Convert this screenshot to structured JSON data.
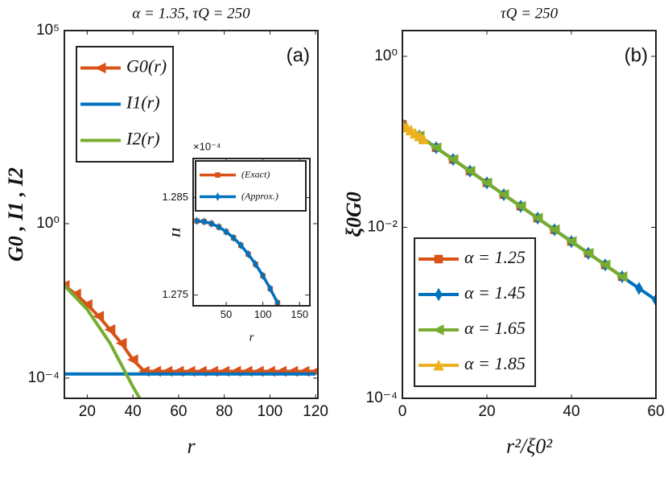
{
  "chart_data": [
    {
      "type": "line",
      "title": "α = 1.35, τQ = 250",
      "annotation": "(a)",
      "xlabel": "r",
      "ylabel": "G0 , I1 , I2",
      "xlim": [
        10,
        121
      ],
      "xticks": [
        20,
        40,
        60,
        80,
        100,
        120
      ],
      "ylim": [
        3e-05,
        100000
      ],
      "yscale": "log",
      "yticks": [
        {
          "value": 0.0001,
          "label": "10⁻⁴"
        },
        {
          "value": 1,
          "label": "10⁰"
        },
        {
          "value": 100000,
          "label": "10⁵"
        }
      ],
      "legend": "upper left",
      "series": [
        {
          "name": "G0(r)",
          "color": "#d95319",
          "marker": "triangle-left",
          "x": [
            10,
            15,
            20,
            25,
            30,
            35,
            40,
            45,
            50,
            55,
            60,
            65,
            70,
            75,
            80,
            85,
            90,
            95,
            100,
            105,
            110,
            115,
            120
          ],
          "values": [
            0.025,
            0.015,
            0.008,
            0.004,
            0.0018,
            0.0008,
            0.0003,
            0.00015,
            0.00015,
            0.00015,
            0.00015,
            0.00015,
            0.00015,
            0.00015,
            0.00015,
            0.00015,
            0.00015,
            0.00015,
            0.00015,
            0.00015,
            0.00015,
            0.00015,
            0.00015
          ]
        },
        {
          "name": "I1(r)",
          "color": "#0072bd",
          "marker": "none",
          "x": [
            10,
            120
          ],
          "values": [
            0.000128,
            0.000128
          ]
        },
        {
          "name": "I2(r)",
          "color": "#77ac30",
          "marker": "none",
          "x": [
            10,
            20,
            30,
            40,
            43
          ],
          "values": [
            0.025,
            0.006,
            0.0008,
            6e-05,
            3e-05
          ]
        }
      ]
    },
    {
      "type": "line",
      "xlabel": "r",
      "ylabel": "I1",
      "multiplier": "×10⁻⁴",
      "xlim": [
        5,
        164
      ],
      "xticks": [
        50,
        100,
        150
      ],
      "ylim": [
        1.2739,
        1.289
      ],
      "yticks": [
        1.275,
        1.285
      ],
      "legend": "upper left",
      "series": [
        {
          "name": "(Exact)",
          "color": "#d95319",
          "marker": "square",
          "x": [
            10,
            20,
            30,
            40,
            50,
            60,
            70,
            80,
            90,
            100,
            110,
            120
          ],
          "values": [
            1.2826,
            1.28253,
            1.28232,
            1.28198,
            1.28149,
            1.28087,
            1.2801,
            1.2792,
            1.27816,
            1.27698,
            1.27566,
            1.2742
          ]
        },
        {
          "name": "(Approx.)",
          "color": "#0072bd",
          "marker": "diamond",
          "x": [
            10,
            20,
            30,
            40,
            50,
            60,
            70,
            80,
            90,
            100,
            110,
            120
          ],
          "values": [
            1.2826,
            1.28253,
            1.28232,
            1.28198,
            1.28149,
            1.28087,
            1.2801,
            1.2792,
            1.27816,
            1.27698,
            1.27566,
            1.2742
          ]
        }
      ]
    },
    {
      "type": "line",
      "title": "τQ = 250",
      "annotation": "(b)",
      "xlabel": "r²/ξ0²",
      "ylabel": "ξ0G0",
      "xlim": [
        0,
        60
      ],
      "xticks": [
        0,
        20,
        40,
        60
      ],
      "ylim": [
        0.0001,
        2
      ],
      "yscale": "log",
      "yticks": [
        {
          "value": 0.0001,
          "label": "10⁻⁴"
        },
        {
          "value": 0.01,
          "label": "10⁻²"
        },
        {
          "value": 1,
          "label": "10⁰"
        }
      ],
      "legend": "lower left",
      "series": [
        {
          "name": "α = 1.25",
          "color": "#d95319",
          "marker": "square",
          "x": [
            0,
            4,
            8,
            12,
            16,
            20,
            24,
            28,
            32,
            36,
            40,
            44,
            48,
            52
          ],
          "values": [
            0.16,
            0.117,
            0.0853,
            0.0622,
            0.0454,
            0.0331,
            0.0241,
            0.0176,
            0.0128,
            0.00935,
            0.00682,
            0.00497,
            0.00363,
            0.00264
          ]
        },
        {
          "name": "α = 1.45",
          "color": "#0072bd",
          "marker": "diamond",
          "x": [
            0,
            4,
            8,
            12,
            16,
            20,
            24,
            28,
            32,
            36,
            40,
            44,
            48,
            52,
            56,
            60
          ],
          "values": [
            0.16,
            0.117,
            0.0853,
            0.0622,
            0.0454,
            0.0331,
            0.0241,
            0.0176,
            0.0128,
            0.00935,
            0.00682,
            0.00497,
            0.00363,
            0.00264,
            0.00193,
            0.00141
          ]
        },
        {
          "name": "α = 1.65",
          "color": "#77ac30",
          "marker": "triangle-left",
          "x": [
            4,
            8,
            12,
            16,
            20,
            24,
            28,
            32,
            36,
            40,
            44,
            48,
            52
          ],
          "values": [
            0.117,
            0.0853,
            0.0622,
            0.0454,
            0.0331,
            0.0241,
            0.0176,
            0.0128,
            0.00935,
            0.00682,
            0.00497,
            0.00363,
            0.00264
          ]
        },
        {
          "name": "α = 1.85",
          "color": "#edb120",
          "marker": "triangle-up",
          "x": [
            0,
            1,
            2,
            3,
            4,
            5
          ],
          "values": [
            0.16,
            0.148,
            0.137,
            0.126,
            0.117,
            0.108
          ]
        }
      ]
    }
  ]
}
